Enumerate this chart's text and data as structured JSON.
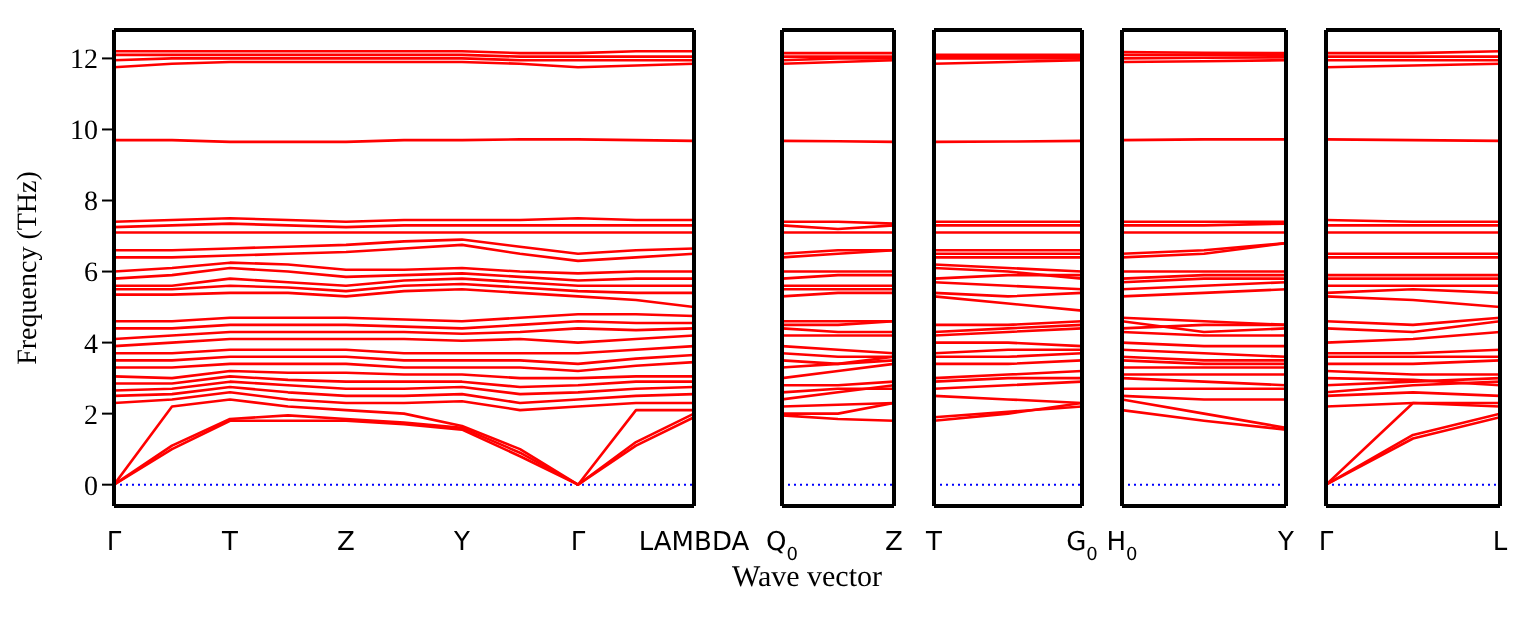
{
  "chart_data": [
    {
      "type": "line",
      "ylabel": "Frequency (THz)",
      "xlabel": "Wave vector",
      "color": "#ff0000",
      "marker": "none",
      "ylim": [
        -0.6,
        12.8
      ],
      "yticks": [
        0,
        2,
        4,
        6,
        8,
        10,
        12
      ],
      "categories": [
        "Γ",
        null,
        "T",
        null,
        "Z",
        null,
        "Y",
        null,
        "Γ",
        null,
        "LAMBDA"
      ],
      "ref_lines": [
        {
          "axis": "y",
          "value": 0,
          "color": "#0000ff",
          "line_style": "dotted"
        }
      ],
      "series": [
        {
          "values": [
            0,
            1.0,
            1.8,
            1.8,
            1.8,
            1.7,
            1.55,
            0.8,
            0,
            1.1,
            1.9
          ]
        },
        {
          "values": [
            0,
            1.1,
            1.85,
            1.95,
            1.85,
            1.75,
            1.6,
            0.9,
            0,
            1.2,
            2.0
          ]
        },
        {
          "values": [
            0,
            2.2,
            2.4,
            2.2,
            2.1,
            2.0,
            1.65,
            1.0,
            0,
            2.1,
            2.1
          ]
        },
        {
          "values": [
            2.3,
            2.4,
            2.6,
            2.4,
            2.3,
            2.3,
            2.35,
            2.1,
            2.2,
            2.3,
            2.3
          ]
        },
        {
          "values": [
            2.5,
            2.55,
            2.75,
            2.6,
            2.5,
            2.5,
            2.55,
            2.3,
            2.4,
            2.5,
            2.55
          ]
        },
        {
          "values": [
            2.65,
            2.7,
            2.9,
            2.8,
            2.7,
            2.7,
            2.75,
            2.55,
            2.6,
            2.7,
            2.75
          ]
        },
        {
          "values": [
            2.85,
            2.85,
            3.05,
            2.95,
            2.9,
            2.9,
            2.9,
            2.75,
            2.8,
            2.9,
            2.9
          ]
        },
        {
          "values": [
            3.05,
            3.0,
            3.2,
            3.15,
            3.15,
            3.1,
            3.1,
            3.0,
            3.0,
            3.05,
            3.05
          ]
        },
        {
          "values": [
            3.3,
            3.3,
            3.4,
            3.4,
            3.4,
            3.3,
            3.3,
            3.3,
            3.2,
            3.35,
            3.45
          ]
        },
        {
          "values": [
            3.5,
            3.5,
            3.6,
            3.6,
            3.6,
            3.5,
            3.5,
            3.5,
            3.4,
            3.55,
            3.65
          ]
        },
        {
          "values": [
            3.7,
            3.7,
            3.8,
            3.8,
            3.8,
            3.7,
            3.7,
            3.7,
            3.7,
            3.8,
            3.9
          ]
        },
        {
          "values": [
            3.9,
            4.0,
            4.1,
            4.1,
            4.1,
            4.1,
            4.05,
            4.1,
            4.0,
            4.1,
            4.2
          ]
        },
        {
          "values": [
            4.1,
            4.2,
            4.3,
            4.3,
            4.3,
            4.3,
            4.25,
            4.3,
            4.4,
            4.35,
            4.4
          ]
        },
        {
          "values": [
            4.4,
            4.4,
            4.5,
            4.5,
            4.5,
            4.45,
            4.4,
            4.5,
            4.6,
            4.55,
            4.55
          ]
        },
        {
          "values": [
            4.6,
            4.6,
            4.7,
            4.7,
            4.7,
            4.65,
            4.6,
            4.7,
            4.8,
            4.8,
            4.75
          ]
        },
        {
          "values": [
            5.35,
            5.35,
            5.4,
            5.4,
            5.3,
            5.45,
            5.5,
            5.4,
            5.3,
            5.2,
            5.0
          ]
        },
        {
          "values": [
            5.5,
            5.5,
            5.6,
            5.55,
            5.45,
            5.6,
            5.65,
            5.55,
            5.45,
            5.4,
            5.4
          ]
        },
        {
          "values": [
            5.6,
            5.6,
            5.8,
            5.7,
            5.6,
            5.75,
            5.8,
            5.7,
            5.6,
            5.6,
            5.6
          ]
        },
        {
          "values": [
            5.8,
            5.9,
            6.1,
            6.0,
            5.85,
            5.9,
            5.95,
            5.85,
            5.75,
            5.8,
            5.8
          ]
        },
        {
          "values": [
            6.0,
            6.1,
            6.25,
            6.2,
            6.05,
            6.05,
            6.1,
            6.0,
            5.95,
            6.0,
            6.0
          ]
        },
        {
          "values": [
            6.4,
            6.4,
            6.45,
            6.5,
            6.55,
            6.65,
            6.75,
            6.5,
            6.3,
            6.4,
            6.5
          ]
        },
        {
          "values": [
            6.6,
            6.6,
            6.65,
            6.7,
            6.75,
            6.85,
            6.9,
            6.7,
            6.5,
            6.6,
            6.65
          ]
        },
        {
          "values": [
            7.1,
            7.1,
            7.1,
            7.1,
            7.1,
            7.1,
            7.1,
            7.1,
            7.1,
            7.1,
            7.1
          ]
        },
        {
          "values": [
            7.25,
            7.3,
            7.35,
            7.3,
            7.25,
            7.3,
            7.3,
            7.3,
            7.3,
            7.3,
            7.3
          ]
        },
        {
          "values": [
            7.4,
            7.45,
            7.5,
            7.45,
            7.4,
            7.45,
            7.45,
            7.45,
            7.5,
            7.45,
            7.45
          ]
        },
        {
          "values": [
            9.7,
            9.7,
            9.65,
            9.65,
            9.65,
            9.7,
            9.7,
            9.72,
            9.72,
            9.7,
            9.68
          ]
        },
        {
          "values": [
            11.75,
            11.85,
            11.9,
            11.9,
            11.9,
            11.9,
            11.9,
            11.85,
            11.75,
            11.8,
            11.85
          ]
        },
        {
          "values": [
            11.95,
            12.0,
            12.0,
            12.0,
            12.0,
            12.0,
            12.0,
            11.95,
            11.95,
            11.95,
            11.95
          ]
        },
        {
          "values": [
            12.1,
            12.1,
            12.1,
            12.1,
            12.1,
            12.1,
            12.1,
            12.05,
            12.05,
            12.05,
            12.05
          ]
        },
        {
          "values": [
            12.2,
            12.2,
            12.2,
            12.2,
            12.2,
            12.2,
            12.2,
            12.15,
            12.15,
            12.2,
            12.2
          ]
        }
      ]
    },
    {
      "type": "line",
      "color": "#ff0000",
      "marker": "none",
      "tick_labels": "x",
      "ylim": [
        -0.6,
        12.8
      ],
      "yticks": [
        0,
        2,
        4,
        6,
        8,
        10,
        12
      ],
      "categories": [
        "Q$_{0}$",
        null,
        "Z"
      ],
      "ref_lines": [
        {
          "axis": "y",
          "value": 0,
          "color": "#0000ff",
          "line_style": "dotted"
        }
      ],
      "series": [
        {
          "values": [
            1.95,
            1.85,
            1.8
          ]
        },
        {
          "values": [
            2.0,
            2.0,
            2.3
          ]
        },
        {
          "values": [
            2.2,
            2.25,
            2.3
          ]
        },
        {
          "values": [
            2.4,
            2.6,
            2.8
          ]
        },
        {
          "values": [
            2.6,
            2.7,
            2.7
          ]
        },
        {
          "values": [
            2.8,
            2.8,
            2.9
          ]
        },
        {
          "values": [
            3.0,
            3.2,
            3.4
          ]
        },
        {
          "values": [
            3.3,
            3.4,
            3.5
          ]
        },
        {
          "values": [
            3.5,
            3.4,
            3.6
          ]
        },
        {
          "values": [
            3.7,
            3.6,
            3.6
          ]
        },
        {
          "values": [
            3.9,
            3.8,
            3.7
          ]
        },
        {
          "values": [
            4.2,
            4.2,
            4.2
          ]
        },
        {
          "values": [
            4.4,
            4.3,
            4.3
          ]
        },
        {
          "values": [
            4.5,
            4.5,
            4.6
          ]
        },
        {
          "values": [
            4.6,
            4.6,
            4.6
          ]
        },
        {
          "values": [
            5.3,
            5.4,
            5.4
          ]
        },
        {
          "values": [
            5.5,
            5.5,
            5.5
          ]
        },
        {
          "values": [
            5.6,
            5.6,
            5.6
          ]
        },
        {
          "values": [
            5.8,
            5.9,
            5.9
          ]
        },
        {
          "values": [
            6.0,
            6.0,
            6.0
          ]
        },
        {
          "values": [
            6.4,
            6.5,
            6.6
          ]
        },
        {
          "values": [
            6.5,
            6.6,
            6.6
          ]
        },
        {
          "values": [
            7.1,
            7.1,
            7.1
          ]
        },
        {
          "values": [
            7.3,
            7.2,
            7.3
          ]
        },
        {
          "values": [
            7.4,
            7.4,
            7.35
          ]
        },
        {
          "values": [
            9.68,
            9.67,
            9.65
          ]
        },
        {
          "values": [
            11.85,
            11.9,
            11.95
          ]
        },
        {
          "values": [
            11.95,
            12.0,
            12.0
          ]
        },
        {
          "values": [
            12.05,
            12.05,
            12.05
          ]
        },
        {
          "values": [
            12.15,
            12.15,
            12.15
          ]
        }
      ]
    },
    {
      "type": "line",
      "color": "#ff0000",
      "marker": "none",
      "tick_labels": "x",
      "ylim": [
        -0.6,
        12.8
      ],
      "yticks": [
        0,
        2,
        4,
        6,
        8,
        10,
        12
      ],
      "categories": [
        "T",
        null,
        "G$_{0}$"
      ],
      "ref_lines": [
        {
          "axis": "y",
          "value": 0,
          "color": "#0000ff",
          "line_style": "dotted"
        }
      ],
      "series": [
        {
          "values": [
            1.8,
            2.0,
            2.3
          ]
        },
        {
          "values": [
            1.9,
            2.05,
            2.2
          ]
        },
        {
          "values": [
            2.5,
            2.4,
            2.3
          ]
        },
        {
          "values": [
            2.7,
            2.8,
            2.9
          ]
        },
        {
          "values": [
            2.9,
            3.0,
            3.0
          ]
        },
        {
          "values": [
            3.0,
            3.1,
            3.2
          ]
        },
        {
          "values": [
            3.4,
            3.4,
            3.5
          ]
        },
        {
          "values": [
            3.6,
            3.6,
            3.7
          ]
        },
        {
          "values": [
            3.7,
            3.8,
            3.8
          ]
        },
        {
          "values": [
            4.0,
            4.0,
            3.9
          ]
        },
        {
          "values": [
            4.2,
            4.3,
            4.4
          ]
        },
        {
          "values": [
            4.3,
            4.4,
            4.5
          ]
        },
        {
          "values": [
            4.5,
            4.5,
            4.6
          ]
        },
        {
          "values": [
            5.3,
            5.1,
            4.9
          ]
        },
        {
          "values": [
            5.4,
            5.3,
            5.4
          ]
        },
        {
          "values": [
            5.7,
            5.6,
            5.5
          ]
        },
        {
          "values": [
            5.8,
            5.9,
            5.9
          ]
        },
        {
          "values": [
            6.1,
            6.0,
            5.8
          ]
        },
        {
          "values": [
            6.2,
            6.1,
            6.0
          ]
        },
        {
          "values": [
            6.4,
            6.4,
            6.4
          ]
        },
        {
          "values": [
            6.5,
            6.5,
            6.5
          ]
        },
        {
          "values": [
            6.6,
            6.6,
            6.6
          ]
        },
        {
          "values": [
            7.1,
            7.1,
            7.1
          ]
        },
        {
          "values": [
            7.3,
            7.3,
            7.3
          ]
        },
        {
          "values": [
            7.4,
            7.4,
            7.4
          ]
        },
        {
          "values": [
            9.65,
            9.66,
            9.68
          ]
        },
        {
          "values": [
            11.85,
            11.9,
            11.95
          ]
        },
        {
          "values": [
            12.0,
            12.0,
            12.0
          ]
        },
        {
          "values": [
            12.05,
            12.05,
            12.05
          ]
        },
        {
          "values": [
            12.1,
            12.1,
            12.1
          ]
        }
      ]
    },
    {
      "type": "line",
      "color": "#ff0000",
      "marker": "none",
      "tick_labels": "x",
      "ylim": [
        -0.6,
        12.8
      ],
      "yticks": [
        0,
        2,
        4,
        6,
        8,
        10,
        12
      ],
      "categories": [
        "H$_{0}$",
        null,
        "Y"
      ],
      "ref_lines": [
        {
          "axis": "y",
          "value": 0,
          "color": "#0000ff",
          "line_style": "dotted"
        }
      ],
      "series": [
        {
          "values": [
            2.1,
            1.8,
            1.55
          ]
        },
        {
          "values": [
            2.4,
            2.0,
            1.6
          ]
        },
        {
          "values": [
            2.5,
            2.4,
            2.4
          ]
        },
        {
          "values": [
            2.7,
            2.7,
            2.7
          ]
        },
        {
          "values": [
            3.0,
            2.9,
            2.8
          ]
        },
        {
          "values": [
            3.1,
            3.1,
            3.1
          ]
        },
        {
          "values": [
            3.3,
            3.3,
            3.3
          ]
        },
        {
          "values": [
            3.5,
            3.4,
            3.4
          ]
        },
        {
          "values": [
            3.6,
            3.5,
            3.5
          ]
        },
        {
          "values": [
            3.8,
            3.7,
            3.6
          ]
        },
        {
          "values": [
            4.0,
            3.9,
            3.9
          ]
        },
        {
          "values": [
            4.3,
            4.2,
            4.2
          ]
        },
        {
          "values": [
            4.6,
            4.3,
            4.4
          ]
        },
        {
          "values": [
            4.4,
            4.5,
            4.5
          ]
        },
        {
          "values": [
            4.7,
            4.6,
            4.5
          ]
        },
        {
          "values": [
            5.3,
            5.4,
            5.5
          ]
        },
        {
          "values": [
            5.5,
            5.6,
            5.7
          ]
        },
        {
          "values": [
            5.7,
            5.8,
            5.8
          ]
        },
        {
          "values": [
            5.8,
            5.9,
            5.9
          ]
        },
        {
          "values": [
            6.0,
            6.0,
            6.0
          ]
        },
        {
          "values": [
            6.4,
            6.5,
            6.8
          ]
        },
        {
          "values": [
            6.5,
            6.6,
            6.8
          ]
        },
        {
          "values": [
            7.1,
            7.1,
            7.1
          ]
        },
        {
          "values": [
            7.3,
            7.3,
            7.35
          ]
        },
        {
          "values": [
            7.4,
            7.4,
            7.4
          ]
        },
        {
          "values": [
            9.7,
            9.72,
            9.72
          ]
        },
        {
          "values": [
            11.9,
            11.92,
            11.95
          ]
        },
        {
          "values": [
            12.0,
            12.02,
            12.03
          ]
        },
        {
          "values": [
            12.1,
            12.1,
            12.1
          ]
        },
        {
          "values": [
            12.18,
            12.16,
            12.15
          ]
        }
      ]
    },
    {
      "type": "line",
      "color": "#ff0000",
      "marker": "none",
      "tick_labels": "x",
      "ylim": [
        -0.6,
        12.8
      ],
      "yticks": [
        0,
        2,
        4,
        6,
        8,
        10,
        12
      ],
      "categories": [
        "Γ",
        null,
        "L"
      ],
      "ref_lines": [
        {
          "axis": "y",
          "value": 0,
          "color": "#0000ff",
          "line_style": "dotted"
        }
      ],
      "series": [
        {
          "values": [
            0,
            1.3,
            1.9
          ]
        },
        {
          "values": [
            0,
            1.4,
            2.0
          ]
        },
        {
          "values": [
            0,
            2.3,
            2.2
          ]
        },
        {
          "values": [
            2.2,
            2.3,
            2.3
          ]
        },
        {
          "values": [
            2.5,
            2.6,
            2.5
          ]
        },
        {
          "values": [
            2.6,
            2.8,
            2.9
          ]
        },
        {
          "values": [
            2.8,
            2.9,
            3.0
          ]
        },
        {
          "values": [
            3.0,
            2.95,
            2.8
          ]
        },
        {
          "values": [
            3.2,
            3.1,
            3.1
          ]
        },
        {
          "values": [
            3.4,
            3.4,
            3.5
          ]
        },
        {
          "values": [
            3.6,
            3.6,
            3.6
          ]
        },
        {
          "values": [
            3.7,
            3.7,
            3.8
          ]
        },
        {
          "values": [
            4.0,
            4.1,
            4.3
          ]
        },
        {
          "values": [
            4.4,
            4.3,
            4.6
          ]
        },
        {
          "values": [
            4.6,
            4.5,
            4.7
          ]
        },
        {
          "values": [
            5.3,
            5.2,
            5.0
          ]
        },
        {
          "values": [
            5.4,
            5.5,
            5.4
          ]
        },
        {
          "values": [
            5.6,
            5.6,
            5.6
          ]
        },
        {
          "values": [
            5.8,
            5.8,
            5.8
          ]
        },
        {
          "values": [
            5.9,
            5.9,
            5.9
          ]
        },
        {
          "values": [
            6.4,
            6.4,
            6.4
          ]
        },
        {
          "values": [
            6.5,
            6.5,
            6.5
          ]
        },
        {
          "values": [
            7.1,
            7.1,
            7.1
          ]
        },
        {
          "values": [
            7.3,
            7.3,
            7.3
          ]
        },
        {
          "values": [
            7.45,
            7.4,
            7.4
          ]
        },
        {
          "values": [
            9.72,
            9.7,
            9.68
          ]
        },
        {
          "values": [
            11.75,
            11.8,
            11.85
          ]
        },
        {
          "values": [
            11.95,
            11.95,
            11.95
          ]
        },
        {
          "values": [
            12.05,
            12.05,
            12.05
          ]
        },
        {
          "values": [
            12.15,
            12.15,
            12.2
          ]
        }
      ]
    }
  ]
}
